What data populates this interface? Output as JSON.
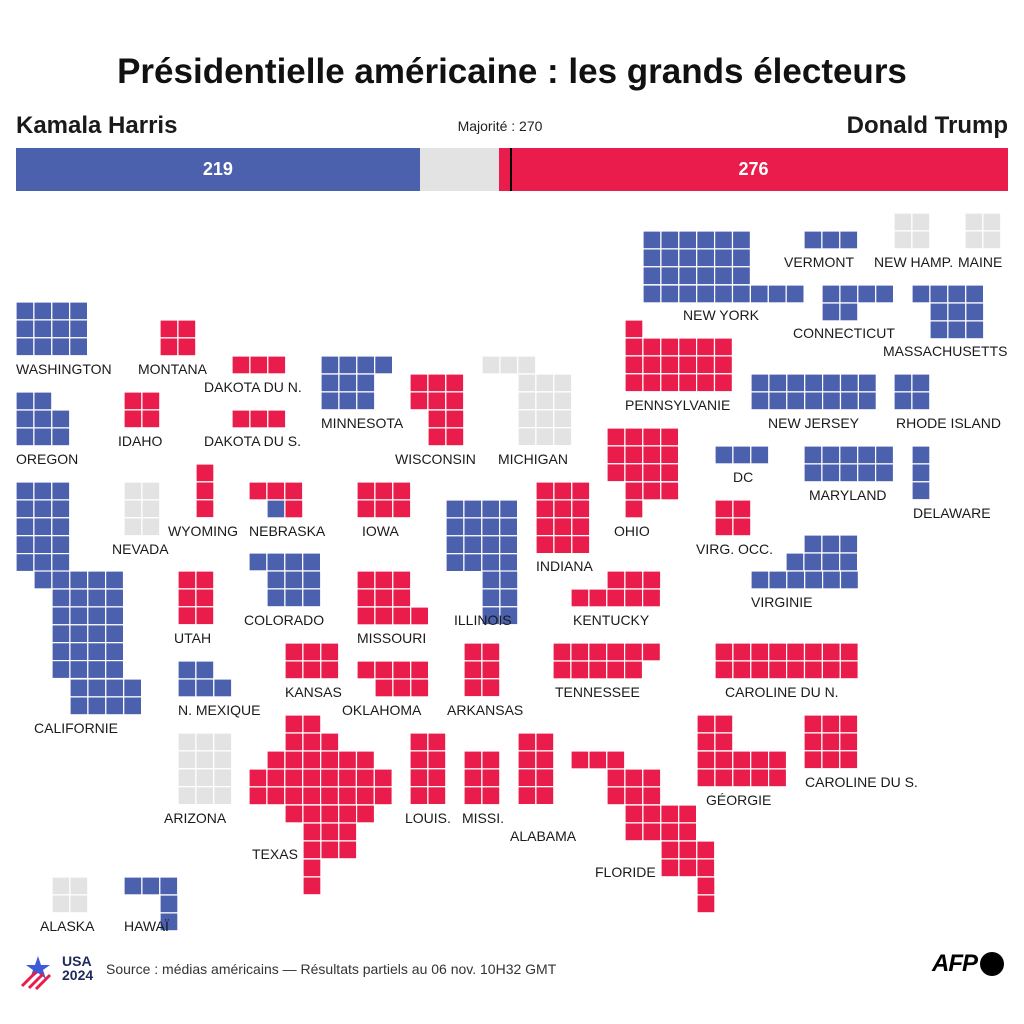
{
  "title": "Présidentielle américaine : les grands électeurs",
  "candidates": {
    "harris": {
      "name": "Kamala Harris",
      "electors": 219,
      "color": "#4b61ad"
    },
    "trump": {
      "name": "Donald Trump",
      "electors": 276,
      "color": "#ea1c4b"
    }
  },
  "majority": {
    "label": "Majorité : 270",
    "value": 270
  },
  "total_electors": 538,
  "undecided_color": "#e3e3e3",
  "map": {
    "states": [
      {
        "id": "WA",
        "label": "WASHINGTON",
        "winner": "harris"
      },
      {
        "id": "OR",
        "label": "OREGON",
        "winner": "harris"
      },
      {
        "id": "CA",
        "label": "CALIFORNIE",
        "winner": "harris"
      },
      {
        "id": "NV",
        "label": "NEVADA",
        "winner": "undecided"
      },
      {
        "id": "ID",
        "label": "IDAHO",
        "winner": "trump"
      },
      {
        "id": "MT",
        "label": "MONTANA",
        "winner": "trump"
      },
      {
        "id": "WY",
        "label": "WYOMING",
        "winner": "trump"
      },
      {
        "id": "UT",
        "label": "UTAH",
        "winner": "trump"
      },
      {
        "id": "AZ",
        "label": "ARIZONA",
        "winner": "undecided"
      },
      {
        "id": "CO",
        "label": "COLORADO",
        "winner": "harris"
      },
      {
        "id": "NM",
        "label": "N. MEXIQUE",
        "winner": "harris"
      },
      {
        "id": "ND",
        "label": "DAKOTA DU N.",
        "winner": "trump"
      },
      {
        "id": "SD",
        "label": "DAKOTA DU S.",
        "winner": "trump"
      },
      {
        "id": "NE",
        "label": "NEBRASKA",
        "winner": "trump",
        "split": {
          "harris": 1,
          "trump": 4
        }
      },
      {
        "id": "KS",
        "label": "KANSAS",
        "winner": "trump"
      },
      {
        "id": "OK",
        "label": "OKLAHOMA",
        "winner": "trump"
      },
      {
        "id": "TX",
        "label": "TEXAS",
        "winner": "trump"
      },
      {
        "id": "MN",
        "label": "MINNESOTA",
        "winner": "harris"
      },
      {
        "id": "IA",
        "label": "IOWA",
        "winner": "trump"
      },
      {
        "id": "MO",
        "label": "MISSOURI",
        "winner": "trump"
      },
      {
        "id": "AR",
        "label": "ARKANSAS",
        "winner": "trump"
      },
      {
        "id": "LA",
        "label": "LOUIS.",
        "winner": "trump"
      },
      {
        "id": "WI",
        "label": "WISCONSIN",
        "winner": "trump"
      },
      {
        "id": "IL",
        "label": "ILLINOIS",
        "winner": "harris"
      },
      {
        "id": "MS",
        "label": "MISSI.",
        "winner": "trump"
      },
      {
        "id": "MI",
        "label": "MICHIGAN",
        "winner": "undecided"
      },
      {
        "id": "IN",
        "label": "INDIANA",
        "winner": "trump"
      },
      {
        "id": "KY",
        "label": "KENTUCKY",
        "winner": "trump"
      },
      {
        "id": "TN",
        "label": "TENNESSEE",
        "winner": "trump"
      },
      {
        "id": "AL",
        "label": "ALABAMA",
        "winner": "trump"
      },
      {
        "id": "OH",
        "label": "OHIO",
        "winner": "trump"
      },
      {
        "id": "WV",
        "label": "VIRG. OCC.",
        "winner": "trump"
      },
      {
        "id": "VA",
        "label": "VIRGINIE",
        "winner": "harris"
      },
      {
        "id": "NC",
        "label": "CAROLINE DU N.",
        "winner": "trump"
      },
      {
        "id": "SC",
        "label": "CAROLINE DU S.",
        "winner": "trump"
      },
      {
        "id": "GA",
        "label": "GÉORGIE",
        "winner": "trump"
      },
      {
        "id": "FL",
        "label": "FLORIDE",
        "winner": "trump"
      },
      {
        "id": "PA",
        "label": "PENNSYLVANIE",
        "winner": "trump"
      },
      {
        "id": "NY",
        "label": "NEW YORK",
        "winner": "harris"
      },
      {
        "id": "VT",
        "label": "VERMONT",
        "winner": "harris"
      },
      {
        "id": "NH",
        "label": "NEW HAMP.",
        "winner": "undecided"
      },
      {
        "id": "ME",
        "label": "MAINE",
        "winner": "undecided"
      },
      {
        "id": "MA",
        "label": "MASSACHUSETTS",
        "winner": "harris"
      },
      {
        "id": "CT",
        "label": "CONNECTICUT",
        "winner": "harris"
      },
      {
        "id": "RI",
        "label": "RHODE ISLAND",
        "winner": "harris"
      },
      {
        "id": "NJ",
        "label": "NEW JERSEY",
        "winner": "harris"
      },
      {
        "id": "DE",
        "label": "DELAWARE",
        "winner": "harris"
      },
      {
        "id": "MD",
        "label": "MARYLAND",
        "winner": "harris"
      },
      {
        "id": "DC",
        "label": "DC",
        "winner": "harris"
      },
      {
        "id": "AK",
        "label": "ALASKA",
        "winner": "undecided"
      },
      {
        "id": "HI",
        "label": "HAWAÏ",
        "winner": "harris"
      }
    ]
  },
  "footer": {
    "source": "Source : médias américains — Résultats partiels au 06 nov. 10H32 GMT",
    "usa_logo": {
      "line1": "USA",
      "line2": "2024"
    },
    "afp": "AFP"
  }
}
